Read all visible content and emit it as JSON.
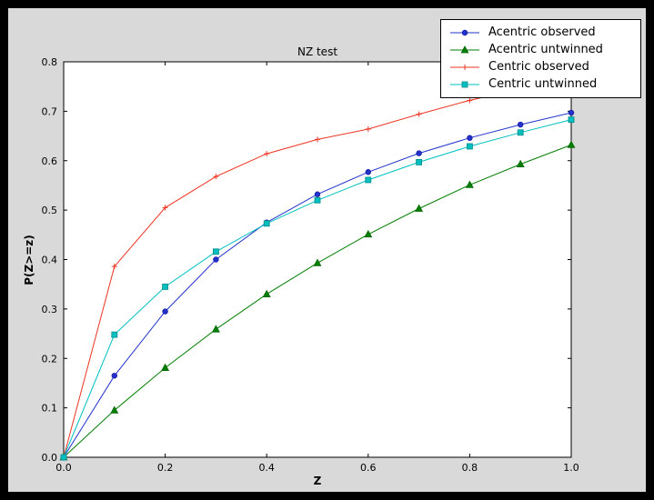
{
  "window": {
    "outer_background": "#000000",
    "figure_background": "#d9d9d9",
    "plot_background": "#ffffff",
    "axes_frame_color": "#000000"
  },
  "chart_data": {
    "type": "line",
    "title": "NZ test",
    "xlabel": "Z",
    "ylabel": "P(Z>=z)",
    "xlim": [
      0.0,
      1.0
    ],
    "ylim": [
      0.0,
      0.8
    ],
    "xticks": [
      0.0,
      0.2,
      0.4,
      0.6,
      0.8,
      1.0
    ],
    "yticks": [
      0.0,
      0.1,
      0.2,
      0.3,
      0.4,
      0.5,
      0.6,
      0.7,
      0.8
    ],
    "grid": false,
    "legend": {
      "location": "upper right (overlapping top of axes)",
      "background": "#ffffff",
      "border_color": "#000000"
    },
    "x": [
      0.0,
      0.1,
      0.2,
      0.3,
      0.4,
      0.5,
      0.6,
      0.7,
      0.8,
      0.9,
      1.0
    ],
    "series": [
      {
        "name": "Acentric observed",
        "color": "#2233cc",
        "marker": "circle",
        "marker_edge": "#1a1aa6",
        "values": [
          0.0,
          0.165,
          0.295,
          0.4,
          0.475,
          0.532,
          0.577,
          0.615,
          0.646,
          0.673,
          0.697
        ]
      },
      {
        "name": "Acentric untwinned",
        "color": "#007f00",
        "marker": "triangle",
        "marker_edge": "#006600",
        "values": [
          0.0,
          0.095,
          0.181,
          0.259,
          0.33,
          0.393,
          0.451,
          0.503,
          0.551,
          0.593,
          0.632
        ]
      },
      {
        "name": "Centric observed",
        "color": "#ee3322",
        "marker": "plus",
        "marker_edge": "#ee3322",
        "values": [
          0.0,
          0.386,
          0.505,
          0.568,
          0.614,
          0.643,
          0.664,
          0.694,
          0.722,
          0.745,
          0.765
        ]
      },
      {
        "name": "Centric untwinned",
        "color": "#00bfbf",
        "marker": "square",
        "marker_edge": "#008b8b",
        "values": [
          0.0,
          0.248,
          0.345,
          0.416,
          0.473,
          0.52,
          0.561,
          0.597,
          0.629,
          0.657,
          0.683
        ]
      }
    ]
  }
}
